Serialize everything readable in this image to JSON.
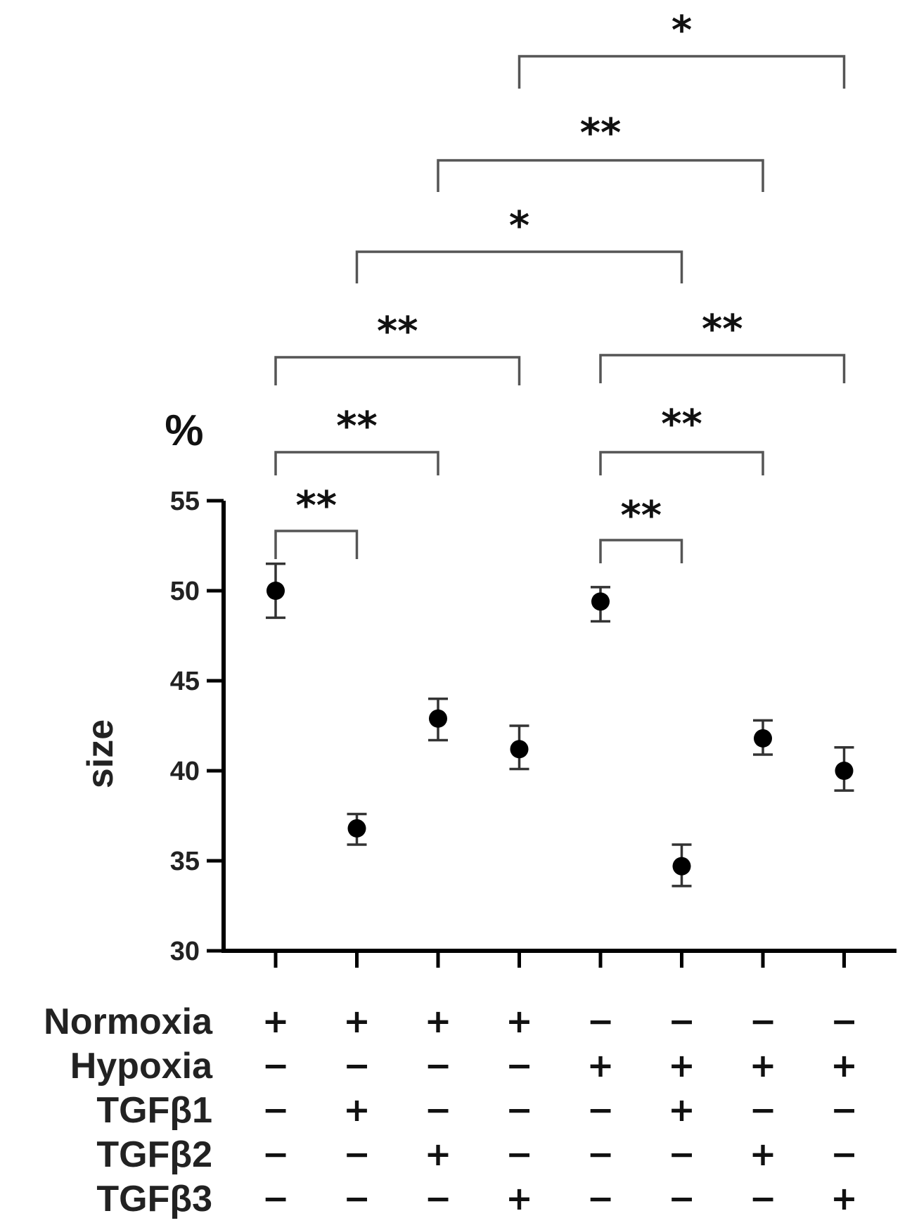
{
  "chart_data": {
    "type": "scatter",
    "title": "",
    "unit_label": "%",
    "ylabel": "size",
    "ylim": [
      30,
      55
    ],
    "yticks": [
      "30",
      "35",
      "40",
      "45",
      "50",
      "55"
    ],
    "grid": false,
    "colors": {
      "marker": "#000000",
      "axis": "#000000",
      "error_bar": "#333333",
      "bracket": "#555555"
    },
    "groups": [
      1,
      2,
      3,
      4,
      5,
      6,
      7,
      8
    ],
    "series": [
      {
        "values": [
          50.0,
          36.8,
          42.9,
          41.2,
          49.4,
          34.7,
          41.8,
          40.0
        ],
        "error_low": [
          48.5,
          35.9,
          41.7,
          40.1,
          48.3,
          33.6,
          40.9,
          38.9
        ],
        "error_high": [
          51.5,
          37.6,
          44.0,
          42.5,
          50.2,
          35.9,
          42.8,
          41.3
        ]
      }
    ],
    "conditions": [
      {
        "label": "Normoxia",
        "signs": [
          "+",
          "+",
          "+",
          "+",
          "−",
          "−",
          "−",
          "−"
        ]
      },
      {
        "label": "Hypoxia",
        "signs": [
          "−",
          "−",
          "−",
          "−",
          "+",
          "+",
          "+",
          "+"
        ]
      },
      {
        "label": "TGFβ1",
        "signs": [
          "−",
          "+",
          "−",
          "−",
          "−",
          "+",
          "−",
          "−"
        ]
      },
      {
        "label": "TGFβ2",
        "signs": [
          "−",
          "−",
          "+",
          "−",
          "−",
          "−",
          "+",
          "−"
        ]
      },
      {
        "label": "TGFβ3",
        "signs": [
          "−",
          "−",
          "−",
          "+",
          "−",
          "−",
          "−",
          "+"
        ]
      }
    ],
    "comparisons": [
      {
        "from": 1,
        "to": 2,
        "label": "**"
      },
      {
        "from": 5,
        "to": 6,
        "label": "**"
      },
      {
        "from": 1,
        "to": 3,
        "label": "**"
      },
      {
        "from": 5,
        "to": 7,
        "label": "**"
      },
      {
        "from": 1,
        "to": 4,
        "label": "**"
      },
      {
        "from": 5,
        "to": 8,
        "label": "**"
      },
      {
        "from": 2,
        "to": 6,
        "label": "*"
      },
      {
        "from": 3,
        "to": 7,
        "label": "**"
      },
      {
        "from": 4,
        "to": 8,
        "label": "*"
      }
    ]
  }
}
